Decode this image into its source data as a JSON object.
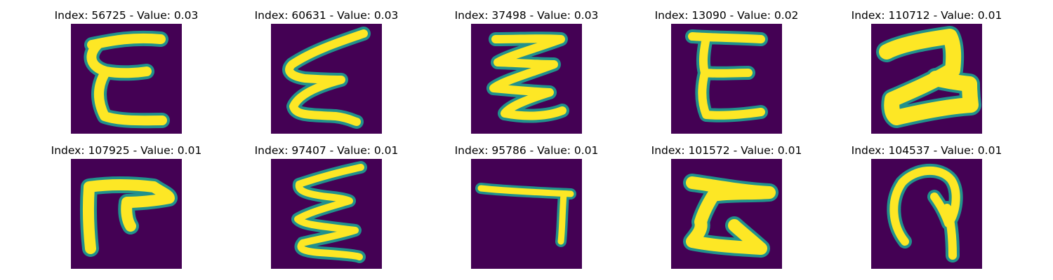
{
  "colors": {
    "background": "#440154",
    "stroke_core": "#fde725",
    "stroke_edge": "#21918c",
    "stroke_mid": "#5ec962"
  },
  "panels": [
    {
      "title": "Index: 56725 - Value: 0.03",
      "glyph": "E"
    },
    {
      "title": "Index: 60631 - Value: 0.03",
      "glyph": "zigzag-left"
    },
    {
      "title": "Index: 37498 - Value: 0.03",
      "glyph": "zigzag-tight"
    },
    {
      "title": "Index: 13090 - Value: 0.02",
      "glyph": "E-square"
    },
    {
      "title": "Index: 110712 - Value: 0.01",
      "glyph": "blob-2"
    },
    {
      "title": "Index: 107925 - Value: 0.01",
      "glyph": "F-hook"
    },
    {
      "title": "Index: 97407 - Value: 0.01",
      "glyph": "zigzag-tall"
    },
    {
      "title": "Index: 95786 - Value: 0.01",
      "glyph": "L-reversed"
    },
    {
      "title": "Index: 101572 - Value: 0.01",
      "glyph": "Z-blob"
    },
    {
      "title": "Index: 104537 - Value: 0.01",
      "glyph": "loop"
    }
  ]
}
